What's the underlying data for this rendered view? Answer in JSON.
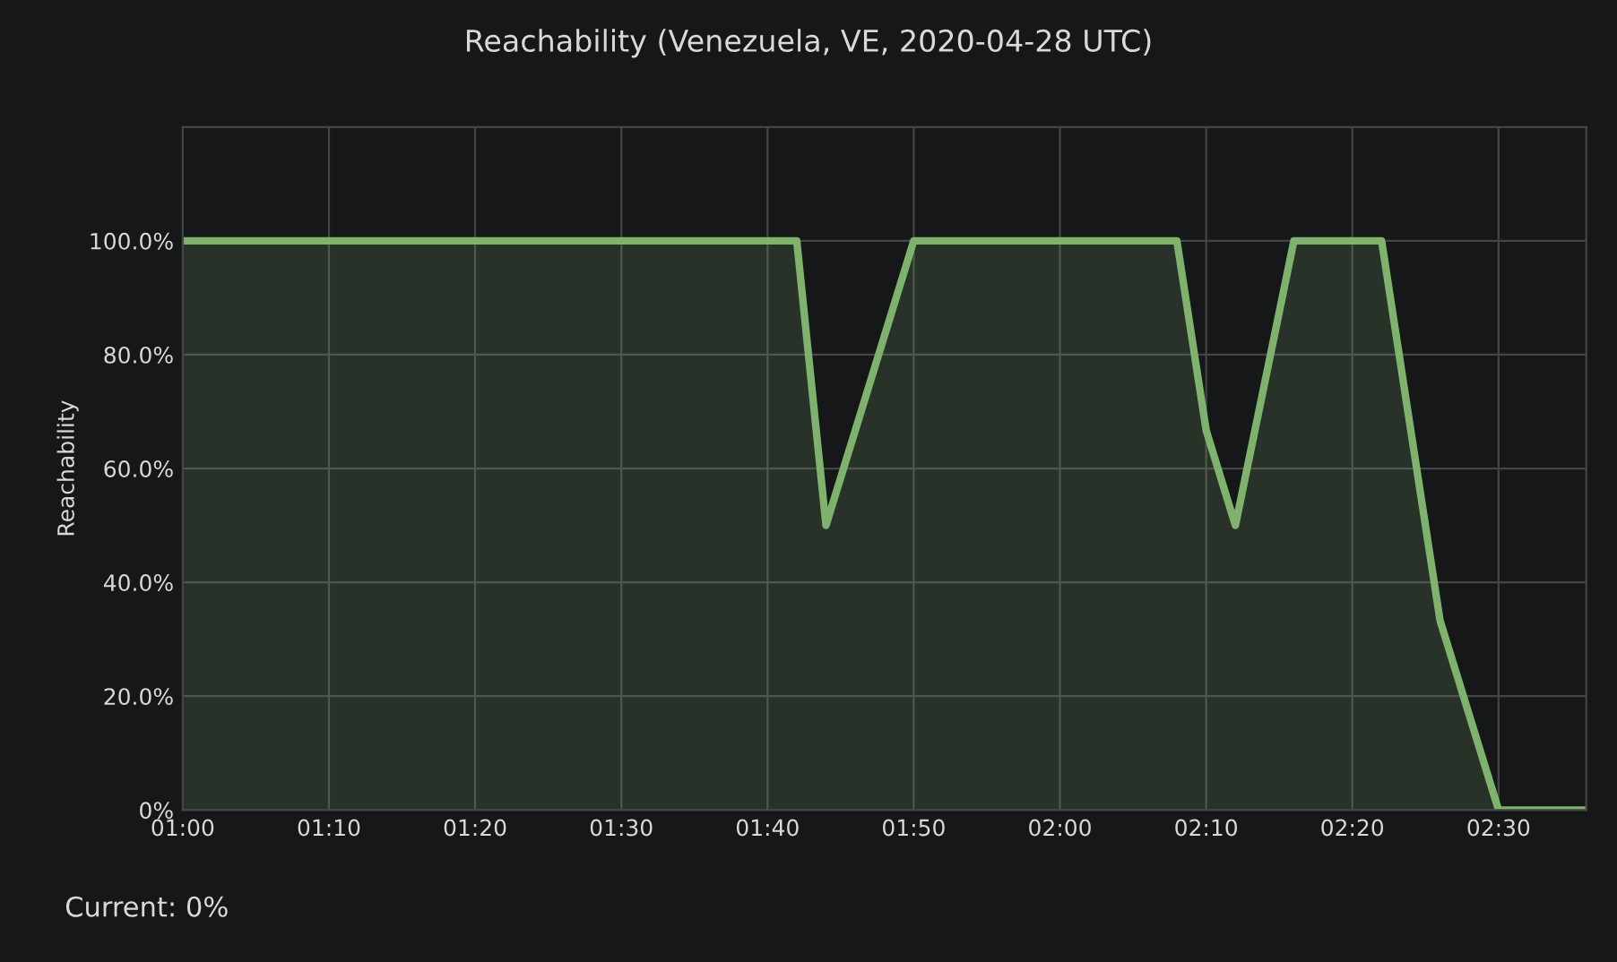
{
  "chart_data": {
    "type": "area",
    "title": "Reachability (Venezuela, VE, 2020-04-28 UTC)",
    "ylabel": "Reachability",
    "x": [
      1.0,
      1.7,
      1.7333,
      1.8333,
      2.1333,
      2.1667,
      2.2,
      2.2667,
      2.3667,
      2.4333,
      2.5,
      2.6
    ],
    "series": [
      {
        "color": "#7eb26d",
        "values": [
          100,
          100,
          50,
          100,
          100,
          66.7,
          50,
          100,
          100,
          33.3,
          0,
          0
        ]
      }
    ],
    "xlim": [
      1.0,
      2.6
    ],
    "xticks": [
      {
        "value": 1.0,
        "label": "01:00"
      },
      {
        "value": 1.1667,
        "label": "01:10"
      },
      {
        "value": 1.3333,
        "label": "01:20"
      },
      {
        "value": 1.5,
        "label": "01:30"
      },
      {
        "value": 1.6667,
        "label": "01:40"
      },
      {
        "value": 1.8333,
        "label": "01:50"
      },
      {
        "value": 2.0,
        "label": "02:00"
      },
      {
        "value": 2.1667,
        "label": "02:10"
      },
      {
        "value": 2.3333,
        "label": "02:20"
      },
      {
        "value": 2.5,
        "label": "02:30"
      }
    ],
    "ylim": [
      0,
      120
    ],
    "yticks": [
      {
        "value": 0,
        "label": "0%"
      },
      {
        "value": 20,
        "label": "20.0%"
      },
      {
        "value": 40,
        "label": "40.0%"
      },
      {
        "value": 60,
        "label": "60.0%"
      },
      {
        "value": 80,
        "label": "80.0%"
      },
      {
        "value": 100,
        "label": "100.0%"
      }
    ],
    "grid": true,
    "annotations": [
      "Current: 0%"
    ]
  }
}
